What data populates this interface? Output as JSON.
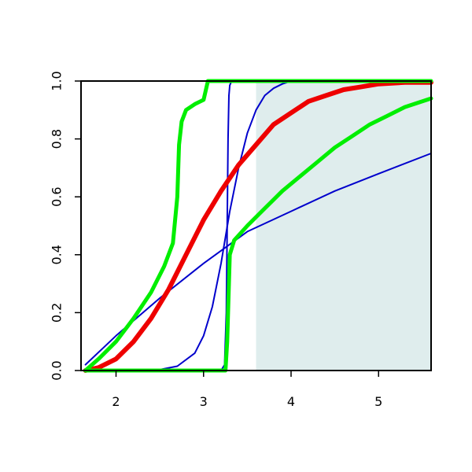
{
  "chart_data": {
    "type": "line",
    "title": "",
    "xlabel": "",
    "ylabel": "",
    "xlim": [
      1.6,
      5.6
    ],
    "ylim": [
      0,
      1
    ],
    "x_ticks": [
      2,
      3,
      4,
      5
    ],
    "y_ticks": [
      0.0,
      0.2,
      0.4,
      0.6,
      0.8,
      1.0
    ],
    "x_tick_labels": [
      "2",
      "3",
      "4",
      "5"
    ],
    "y_tick_labels": [
      "0.0",
      "0.2",
      "0.4",
      "0.6",
      "0.8",
      "1.0"
    ],
    "grid": false,
    "legend": "none",
    "shaded_region": {
      "x_start": 3.6,
      "x_end": 5.6,
      "y_start": 0,
      "y_end": 1,
      "color": "#dfeded"
    },
    "series": [
      {
        "color": "#0000cc",
        "width": 2,
        "points": [
          [
            1.65,
            0.02
          ],
          [
            2.0,
            0.12
          ],
          [
            2.5,
            0.25
          ],
          [
            3.0,
            0.37
          ],
          [
            3.5,
            0.48
          ],
          [
            4.0,
            0.55
          ],
          [
            4.5,
            0.62
          ],
          [
            5.0,
            0.68
          ],
          [
            5.6,
            0.75
          ]
        ]
      },
      {
        "color": "#0000cc",
        "width": 2,
        "points": [
          [
            2.3,
            0.0
          ],
          [
            2.5,
            0.003
          ],
          [
            2.7,
            0.015
          ],
          [
            2.9,
            0.06
          ],
          [
            3.0,
            0.12
          ],
          [
            3.1,
            0.22
          ],
          [
            3.2,
            0.37
          ],
          [
            3.3,
            0.55
          ],
          [
            3.4,
            0.7
          ],
          [
            3.5,
            0.82
          ],
          [
            3.6,
            0.9
          ],
          [
            3.7,
            0.95
          ],
          [
            3.8,
            0.975
          ],
          [
            3.9,
            0.99
          ],
          [
            4.0,
            1.0
          ],
          [
            5.6,
            1.0
          ]
        ]
      },
      {
        "color": "#0000cc",
        "width": 2,
        "points": [
          [
            1.65,
            0.0
          ],
          [
            3.2,
            0.0
          ],
          [
            3.24,
            0.02
          ],
          [
            3.26,
            0.2
          ],
          [
            3.27,
            0.5
          ],
          [
            3.28,
            0.8
          ],
          [
            3.29,
            0.95
          ],
          [
            3.3,
            0.985
          ],
          [
            3.32,
            1.0
          ],
          [
            5.6,
            1.0
          ]
        ]
      },
      {
        "color": "#ee0000",
        "width": 6,
        "points": [
          [
            1.65,
            0.0
          ],
          [
            1.8,
            0.01
          ],
          [
            2.0,
            0.04
          ],
          [
            2.2,
            0.1
          ],
          [
            2.4,
            0.18
          ],
          [
            2.6,
            0.28
          ],
          [
            2.8,
            0.4
          ],
          [
            3.0,
            0.52
          ],
          [
            3.2,
            0.62
          ],
          [
            3.4,
            0.71
          ],
          [
            3.6,
            0.78
          ],
          [
            3.8,
            0.85
          ],
          [
            4.0,
            0.89
          ],
          [
            4.2,
            0.93
          ],
          [
            4.4,
            0.95
          ],
          [
            4.6,
            0.97
          ],
          [
            4.8,
            0.98
          ],
          [
            5.0,
            0.99
          ],
          [
            5.3,
            0.995
          ],
          [
            5.6,
            0.995
          ]
        ]
      },
      {
        "color": "#00ee00",
        "width": 5,
        "points": [
          [
            1.65,
            0.0
          ],
          [
            1.8,
            0.04
          ],
          [
            2.0,
            0.1
          ],
          [
            2.2,
            0.18
          ],
          [
            2.4,
            0.27
          ],
          [
            2.55,
            0.36
          ],
          [
            2.65,
            0.44
          ],
          [
            2.7,
            0.6
          ],
          [
            2.72,
            0.78
          ],
          [
            2.75,
            0.86
          ],
          [
            2.8,
            0.9
          ],
          [
            2.9,
            0.92
          ],
          [
            3.0,
            0.935
          ],
          [
            3.05,
            1.0
          ],
          [
            5.6,
            1.0
          ]
        ]
      },
      {
        "color": "#00ee00",
        "width": 5,
        "points": [
          [
            1.65,
            0.0
          ],
          [
            3.25,
            0.0
          ],
          [
            3.27,
            0.1
          ],
          [
            3.3,
            0.4
          ],
          [
            3.35,
            0.45
          ],
          [
            3.5,
            0.5
          ],
          [
            3.7,
            0.56
          ],
          [
            3.9,
            0.62
          ],
          [
            4.1,
            0.67
          ],
          [
            4.3,
            0.72
          ],
          [
            4.5,
            0.77
          ],
          [
            4.7,
            0.81
          ],
          [
            4.9,
            0.85
          ],
          [
            5.1,
            0.88
          ],
          [
            5.3,
            0.91
          ],
          [
            5.6,
            0.94
          ]
        ]
      }
    ]
  }
}
